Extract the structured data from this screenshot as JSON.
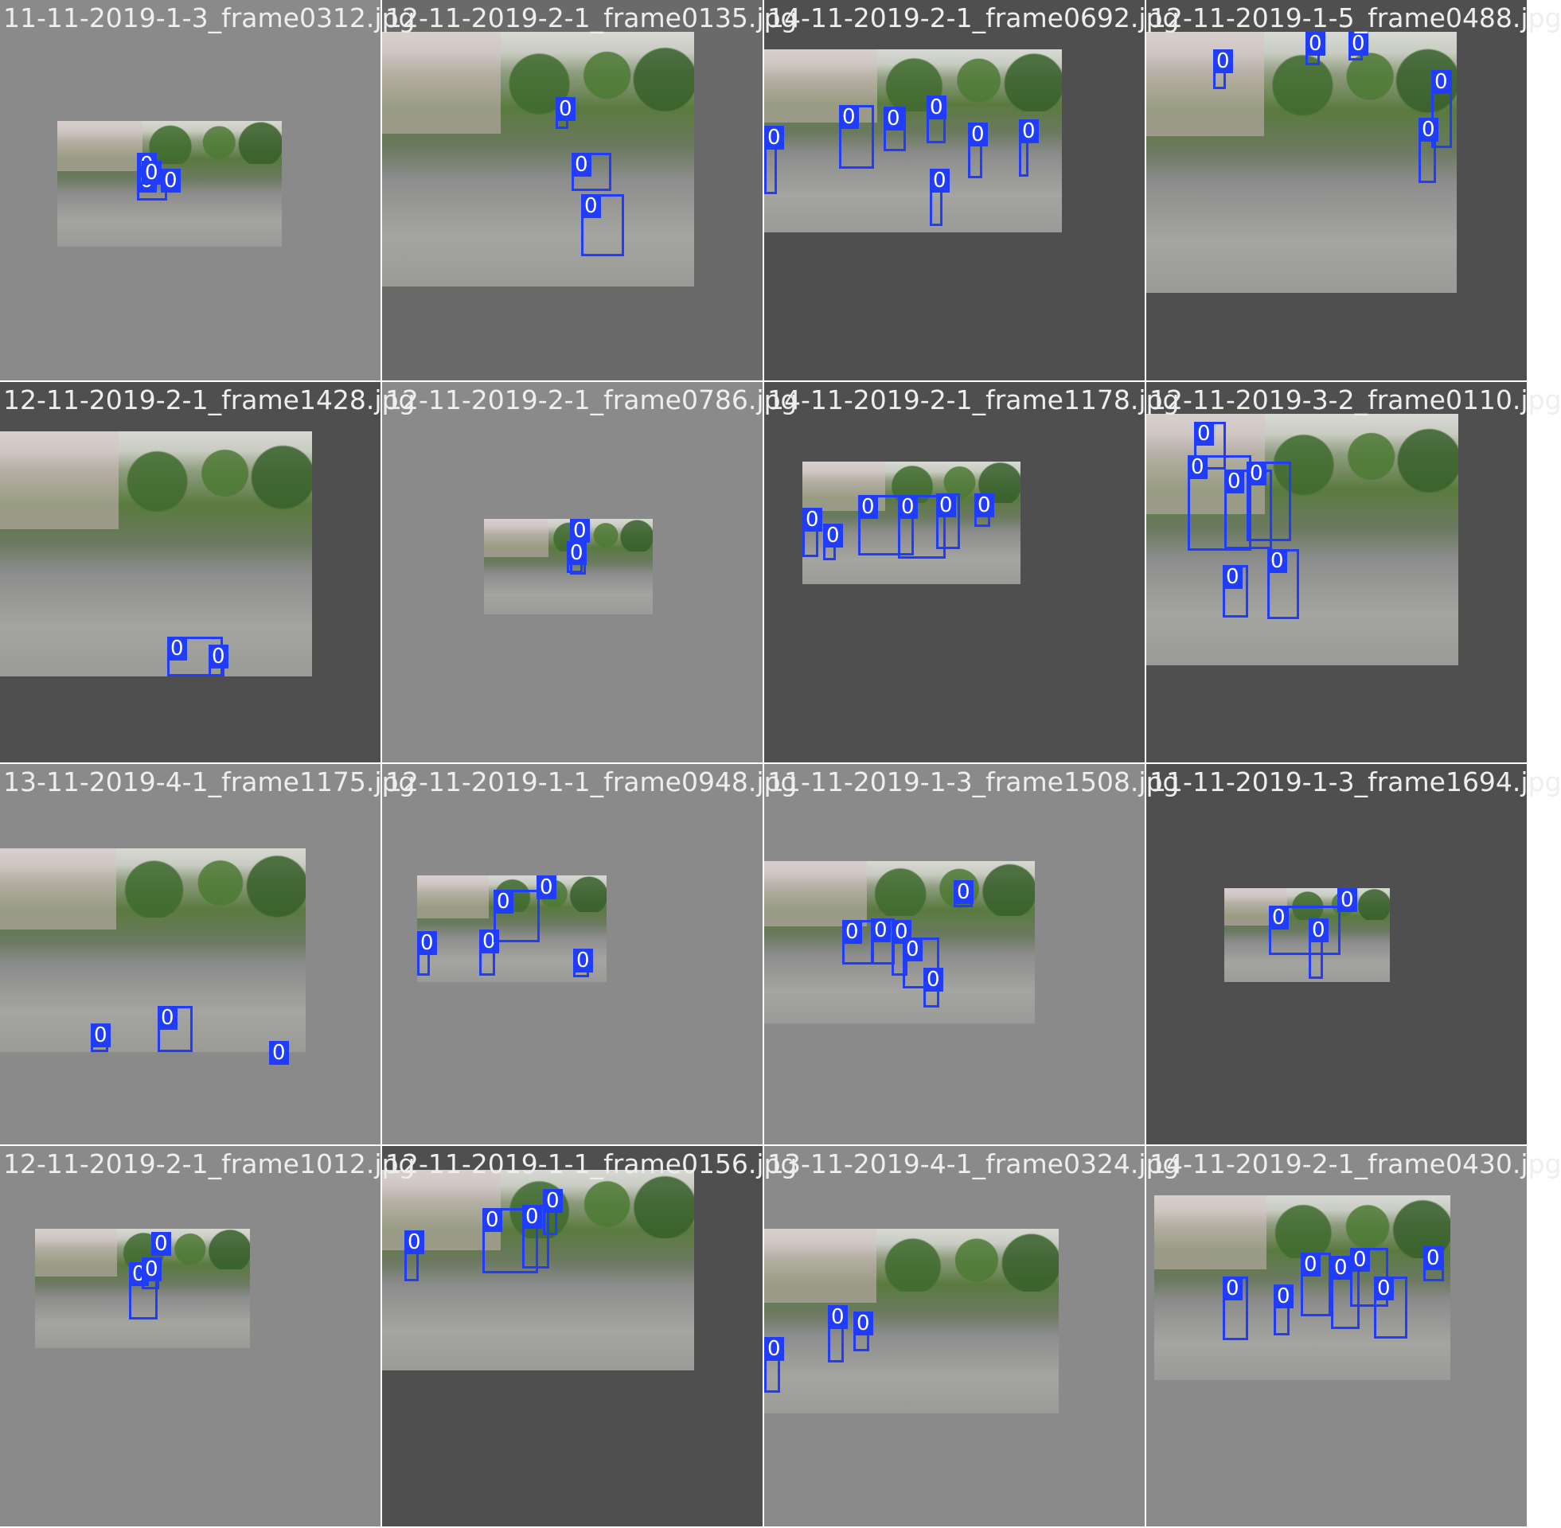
{
  "tiles": [
    {
      "caption": "11-11-2019-1-3_frame0312.jpg",
      "bg": "#8a8a8a",
      "box_label": "0"
    },
    {
      "caption": "12-11-2019-2-1_frame0135.jpg",
      "bg": "#6a6a6a",
      "box_label": "0"
    },
    {
      "caption": "14-11-2019-2-1_frame0692.jpg",
      "bg": "#4f4f4f",
      "box_label": "0"
    },
    {
      "caption": "12-11-2019-1-5_frame0488.jpg",
      "bg": "#4f4f4f",
      "box_label": "0"
    },
    {
      "caption": "12-11-2019-2-1_frame1428.jpg",
      "bg": "#4f4f4f",
      "box_label": "0"
    },
    {
      "caption": "12-11-2019-2-1_frame0786.jpg",
      "bg": "#8a8a8a",
      "box_label": "0"
    },
    {
      "caption": "14-11-2019-2-1_frame1178.jpg",
      "bg": "#4f4f4f",
      "box_label": "0"
    },
    {
      "caption": "12-11-2019-3-2_frame0110.jpg",
      "bg": "#4f4f4f",
      "box_label": "0"
    },
    {
      "caption": "13-11-2019-4-1_frame1175.jpg",
      "bg": "#8a8a8a",
      "box_label": "0"
    },
    {
      "caption": "12-11-2019-1-1_frame0948.jpg",
      "bg": "#8a8a8a",
      "box_label": "0"
    },
    {
      "caption": "11-11-2019-1-3_frame1508.jpg",
      "bg": "#8a8a8a",
      "box_label": "0"
    },
    {
      "caption": "11-11-2019-1-3_frame1694.jpg",
      "bg": "#4f4f4f",
      "box_label": "0"
    },
    {
      "caption": "12-11-2019-2-1_frame1012.jpg",
      "bg": "#8a8a8a",
      "box_label": "0"
    },
    {
      "caption": "12-11-2019-1-1_frame0156.jpg",
      "bg": "#4f4f4f",
      "box_label": "0"
    },
    {
      "caption": "13-11-2019-4-1_frame0324.jpg",
      "bg": "#8a8a8a",
      "box_label": "0"
    },
    {
      "caption": "14-11-2019-2-1_frame0430.jpg",
      "bg": "#8a8a8a",
      "box_label": "0"
    }
  ],
  "colors": {
    "box": "#1f3cff",
    "caption_text": "#eeeeee"
  }
}
